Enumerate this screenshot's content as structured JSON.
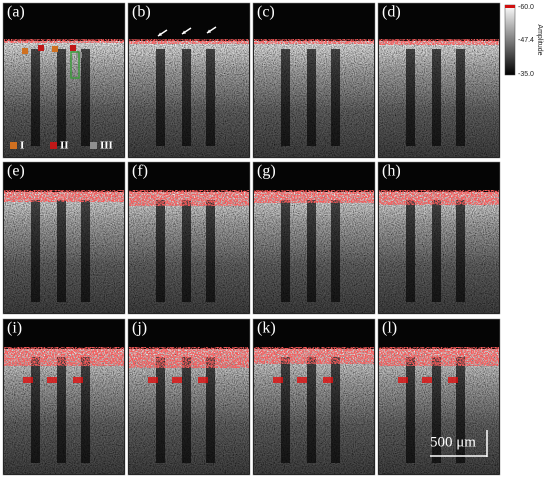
{
  "panels": [
    {
      "label": "(a)"
    },
    {
      "label": "(b)"
    },
    {
      "label": "(c)"
    },
    {
      "label": "(d)"
    },
    {
      "label": "(e)"
    },
    {
      "label": "(f)"
    },
    {
      "label": "(g)"
    },
    {
      "label": "(h)"
    },
    {
      "label": "(i)"
    },
    {
      "label": "(j)"
    },
    {
      "label": "(k)"
    },
    {
      "label": "(l)"
    }
  ],
  "legend": [
    "I",
    "II",
    "III"
  ],
  "colorbar": {
    "title": "Amplitude",
    "ticks": [
      "-60.0",
      "-47.4",
      "-35.0"
    ]
  },
  "scale_bar": "500 μm"
}
